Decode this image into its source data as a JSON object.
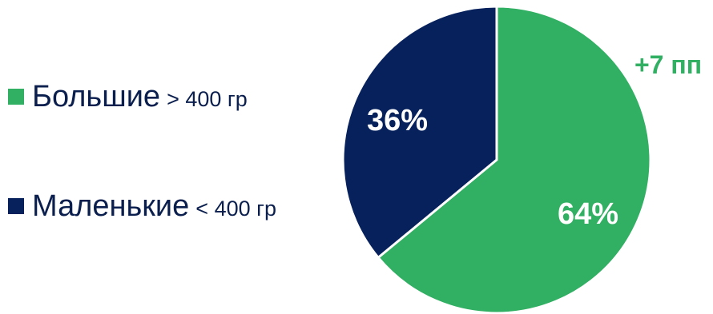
{
  "chart_data": {
    "type": "pie",
    "title": "",
    "slices": [
      {
        "label": "Большие",
        "note": "> 400 гр",
        "value": 64,
        "value_label": "64%",
        "color": "#31AF62"
      },
      {
        "label": "Маленькие",
        "note": "< 400 гр",
        "value": 36,
        "value_label": "36%",
        "color": "#06215C"
      }
    ],
    "annotation": {
      "text": "+7 пп",
      "color": "#31AF62",
      "refers_to": "Большие"
    },
    "legend_position": "left",
    "start_angle": "12 o'clock",
    "direction": "clockwise"
  }
}
